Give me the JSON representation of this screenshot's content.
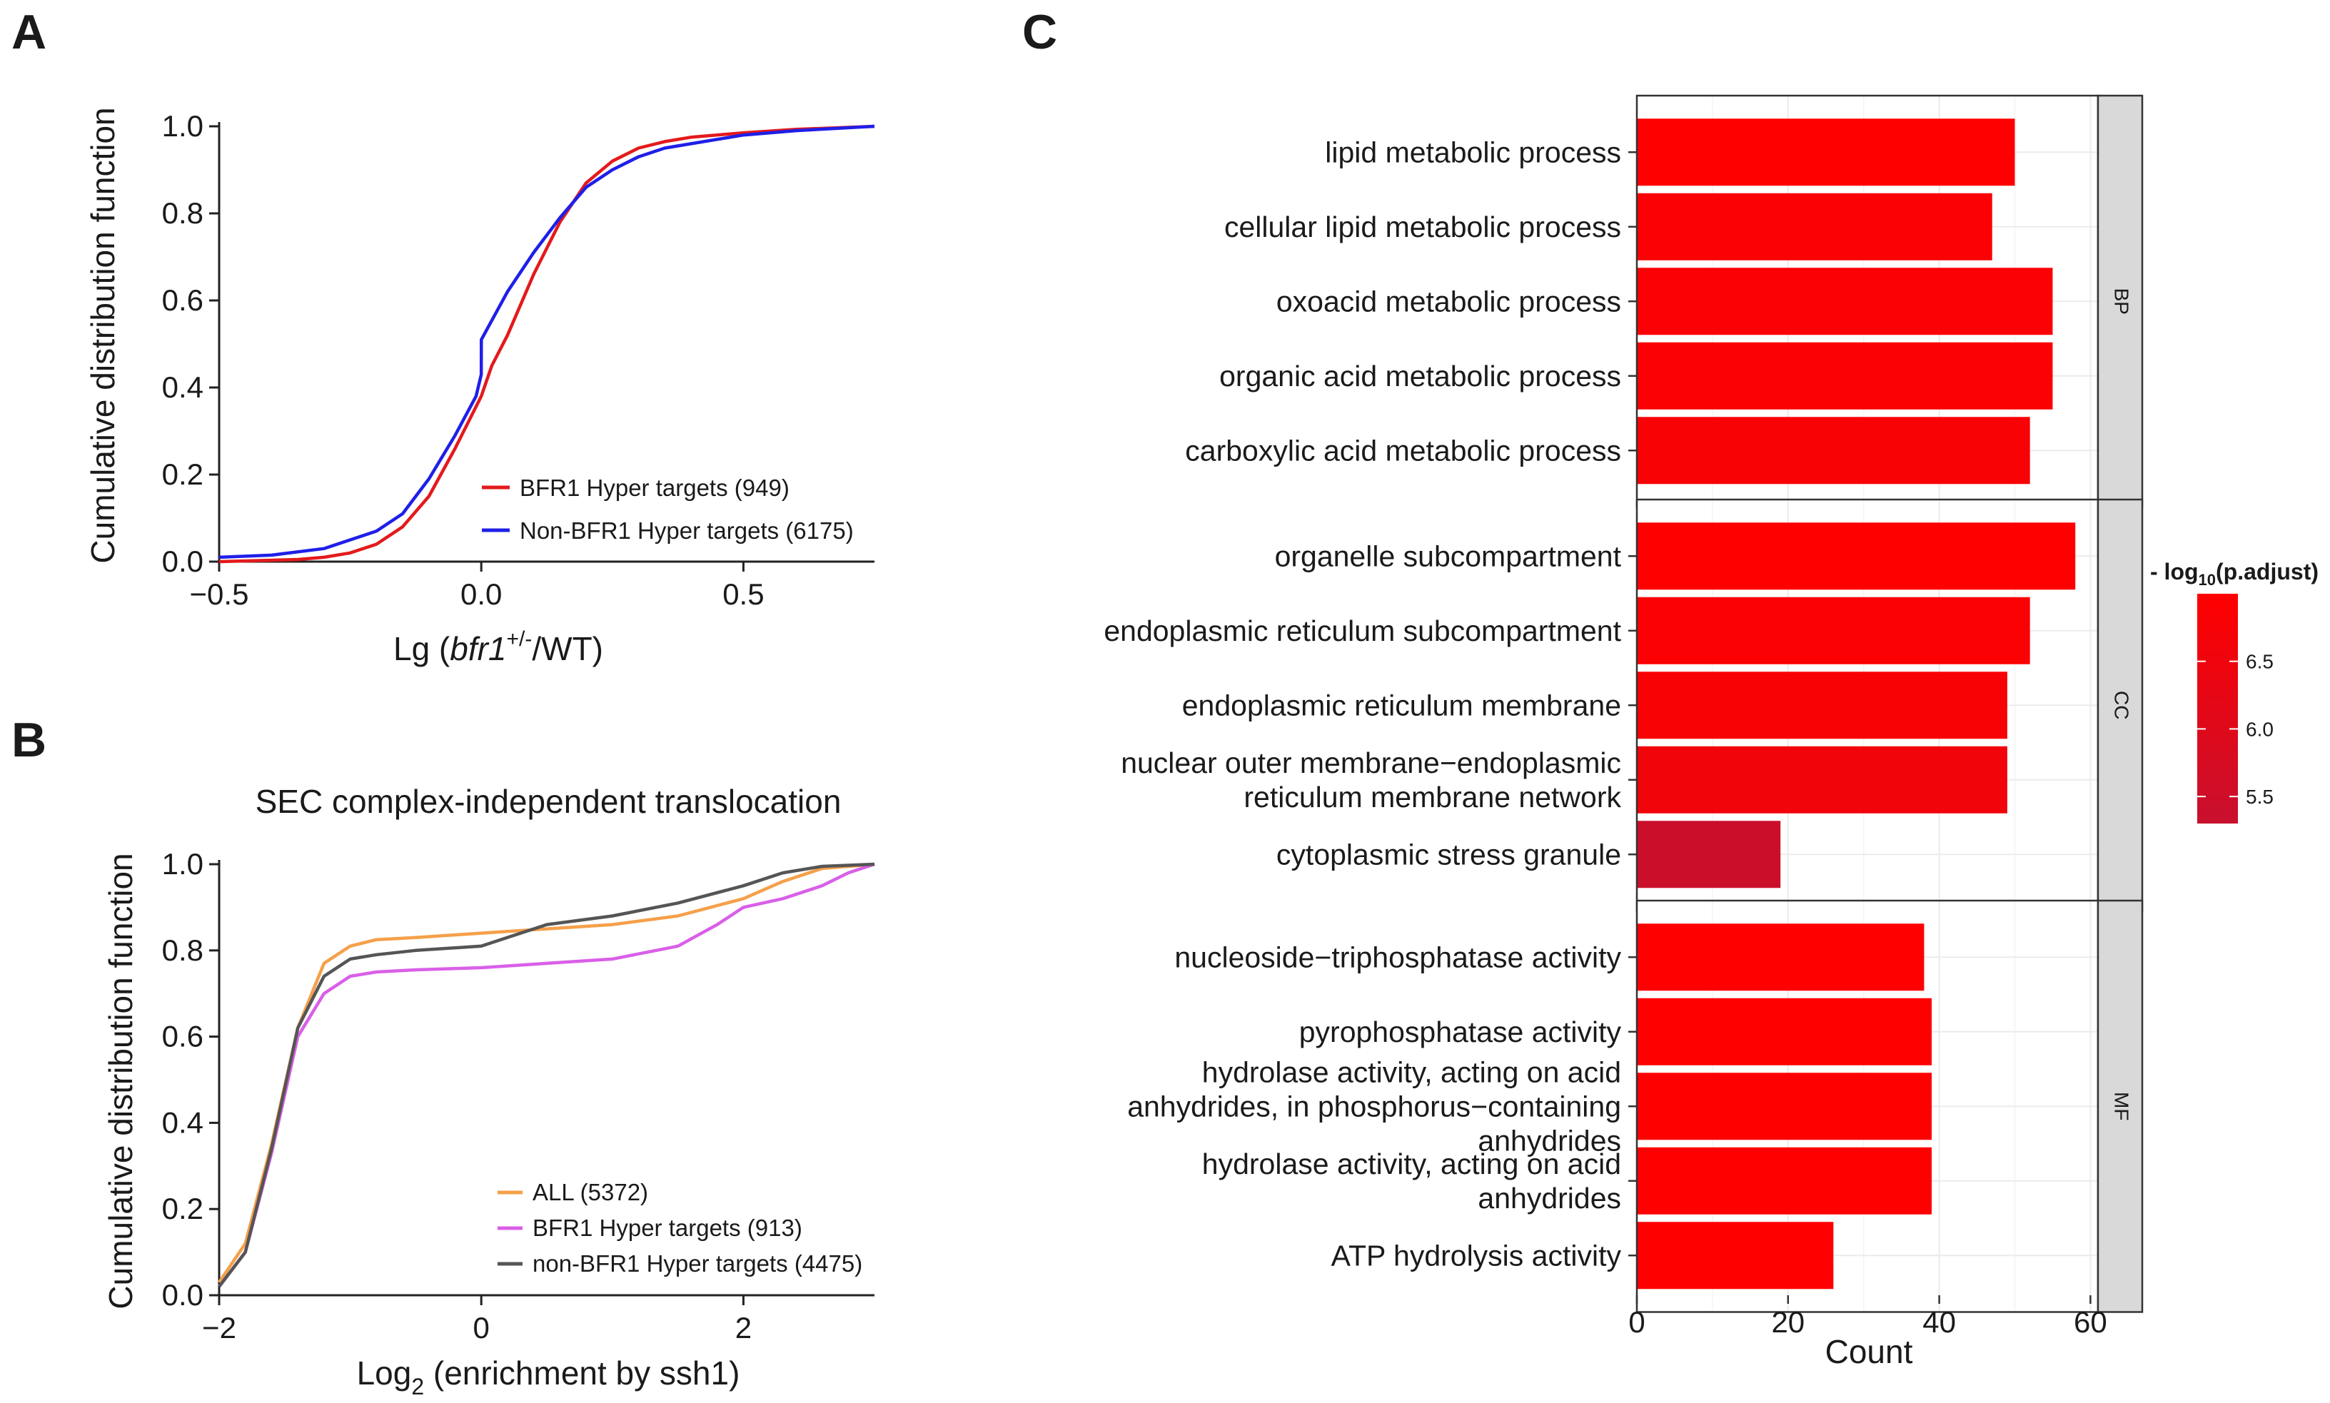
{
  "chart_data": [
    {
      "panel": "A",
      "type": "line",
      "title": "",
      "xlabel_prefix": "Lg (",
      "xlabel_italic": "bfr1",
      "xlabel_sup": "+/-",
      "xlabel_suffix": "/WT)",
      "ylabel": "Cumulative distribution function",
      "xlim": [
        -0.5,
        0.75
      ],
      "ylim": [
        0,
        1
      ],
      "xticks": [
        -0.5,
        0.0,
        0.5
      ],
      "xtick_labels": [
        "−0.5",
        "0.0",
        "0.5"
      ],
      "yticks": [
        0,
        0.2,
        0.4,
        0.6,
        0.8,
        1.0
      ],
      "ytick_labels": [
        "0.0",
        "0.2",
        "0.4",
        "0.6",
        "0.8",
        "1.0"
      ],
      "legend_position": "bottom-right",
      "series": [
        {
          "name": "BFR1 Hyper targets (949)",
          "color": "#e31a1c",
          "x": [
            -0.5,
            -0.35,
            -0.3,
            -0.25,
            -0.2,
            -0.15,
            -0.1,
            -0.05,
            0,
            0.02,
            0.05,
            0.1,
            0.15,
            0.2,
            0.25,
            0.3,
            0.35,
            0.4,
            0.5,
            0.6,
            0.75
          ],
          "y": [
            0.0,
            0.005,
            0.01,
            0.02,
            0.04,
            0.08,
            0.15,
            0.26,
            0.38,
            0.45,
            0.52,
            0.66,
            0.78,
            0.87,
            0.92,
            0.95,
            0.965,
            0.975,
            0.985,
            0.993,
            1.0
          ]
        },
        {
          "name": "Non-BFR1 Hyper targets (6175)",
          "color": "#1f1fe8",
          "x": [
            -0.5,
            -0.4,
            -0.3,
            -0.25,
            -0.2,
            -0.15,
            -0.1,
            -0.05,
            -0.01,
            0,
            0.0001,
            0.05,
            0.1,
            0.15,
            0.2,
            0.25,
            0.3,
            0.35,
            0.4,
            0.5,
            0.6,
            0.75
          ],
          "y": [
            0.01,
            0.015,
            0.03,
            0.05,
            0.07,
            0.11,
            0.19,
            0.29,
            0.38,
            0.43,
            0.51,
            0.62,
            0.71,
            0.79,
            0.86,
            0.9,
            0.93,
            0.95,
            0.96,
            0.98,
            0.99,
            1.0
          ]
        }
      ]
    },
    {
      "panel": "B",
      "type": "line",
      "title": "SEC complex-independent translocation",
      "xlabel_prefix": "Log",
      "xlabel_sub": "2",
      "xlabel_suffix": " (enrichment by ssh1)",
      "ylabel": "Cumulative distribution function",
      "xlim": [
        -2,
        3
      ],
      "ylim": [
        0,
        1
      ],
      "xticks": [
        -2,
        0,
        2
      ],
      "xtick_labels": [
        "−2",
        "0",
        "2"
      ],
      "yticks": [
        0,
        0.2,
        0.4,
        0.6,
        0.8,
        1.0
      ],
      "ytick_labels": [
        "0.0",
        "0.2",
        "0.4",
        "0.6",
        "0.8",
        "1.0"
      ],
      "legend_position": "bottom-right",
      "series": [
        {
          "name": "ALL (5372)",
          "color": "#f5a04a",
          "x": [
            -2,
            -1.8,
            -1.6,
            -1.4,
            -1.2,
            -1.0,
            -0.8,
            -0.5,
            0,
            0.5,
            1.0,
            1.5,
            2.0,
            2.3,
            2.6,
            3.0
          ],
          "y": [
            0.03,
            0.12,
            0.35,
            0.62,
            0.77,
            0.81,
            0.825,
            0.83,
            0.84,
            0.85,
            0.86,
            0.88,
            0.92,
            0.96,
            0.99,
            1.0
          ]
        },
        {
          "name": "BFR1 Hyper targets (913)",
          "color": "#d95fe8",
          "x": [
            -2,
            -1.8,
            -1.6,
            -1.4,
            -1.2,
            -1.0,
            -0.8,
            -0.5,
            0,
            0.5,
            1.0,
            1.5,
            1.8,
            2.0,
            2.3,
            2.6,
            2.8,
            3.0
          ],
          "y": [
            0.02,
            0.1,
            0.33,
            0.6,
            0.7,
            0.74,
            0.75,
            0.755,
            0.76,
            0.77,
            0.78,
            0.81,
            0.86,
            0.9,
            0.92,
            0.95,
            0.98,
            1.0
          ]
        },
        {
          "name": "non-BFR1 Hyper targets (4475)",
          "color": "#555555",
          "x": [
            -2,
            -1.8,
            -1.6,
            -1.4,
            -1.2,
            -1.0,
            -0.8,
            -0.5,
            0,
            0.3,
            0.5,
            1.0,
            1.5,
            2.0,
            2.3,
            2.6,
            3.0
          ],
          "y": [
            0.02,
            0.1,
            0.34,
            0.62,
            0.74,
            0.78,
            0.79,
            0.8,
            0.81,
            0.84,
            0.86,
            0.88,
            0.91,
            0.95,
            0.98,
            0.995,
            1.0
          ]
        }
      ]
    },
    {
      "panel": "C",
      "type": "bar",
      "orientation": "horizontal",
      "xlabel": "Count",
      "xlim": [
        0,
        61
      ],
      "xticks": [
        0,
        20,
        40,
        60
      ],
      "xtick_labels": [
        "0",
        "20",
        "40",
        "60"
      ],
      "colorbar_title_prefix": "- log",
      "colorbar_title_sub": "10",
      "colorbar_title_suffix": "(p.adjust)",
      "colorbar_range": [
        5.3,
        7.0
      ],
      "colorbar_ticks": [
        5.5,
        6.0,
        6.5
      ],
      "colorbar_tick_labels": [
        "5.5",
        "6.0",
        "6.5"
      ],
      "color_low": "#c8102e",
      "color_high": "#ff0000",
      "facets": [
        {
          "label": "BP",
          "terms": [
            {
              "lines": [
                "lipid metabolic process"
              ],
              "count": 50,
              "neg_log10_padj": 7.0
            },
            {
              "lines": [
                "cellular lipid metabolic process"
              ],
              "count": 47,
              "neg_log10_padj": 6.9
            },
            {
              "lines": [
                "oxoacid metabolic process"
              ],
              "count": 55,
              "neg_log10_padj": 6.9
            },
            {
              "lines": [
                "organic acid metabolic process"
              ],
              "count": 55,
              "neg_log10_padj": 6.9
            },
            {
              "lines": [
                "carboxylic acid metabolic process"
              ],
              "count": 52,
              "neg_log10_padj": 6.8
            }
          ]
        },
        {
          "label": "CC",
          "terms": [
            {
              "lines": [
                "organelle subcompartment"
              ],
              "count": 58,
              "neg_log10_padj": 7.0
            },
            {
              "lines": [
                "endoplasmic reticulum subcompartment"
              ],
              "count": 52,
              "neg_log10_padj": 6.9
            },
            {
              "lines": [
                "endoplasmic reticulum membrane"
              ],
              "count": 49,
              "neg_log10_padj": 6.8
            },
            {
              "lines": [
                "nuclear outer membrane−endoplasmic",
                "reticulum membrane network"
              ],
              "count": 49,
              "neg_log10_padj": 6.6
            },
            {
              "lines": [
                "cytoplasmic stress granule"
              ],
              "count": 19,
              "neg_log10_padj": 5.4
            }
          ]
        },
        {
          "label": "MF",
          "terms": [
            {
              "lines": [
                "nucleoside−triphosphatase activity"
              ],
              "count": 38,
              "neg_log10_padj": 7.0
            },
            {
              "lines": [
                "pyrophosphatase activity"
              ],
              "count": 39,
              "neg_log10_padj": 7.0
            },
            {
              "lines": [
                "hydrolase activity, acting on acid",
                "anhydrides, in phosphorus−containing",
                "anhydrides"
              ],
              "count": 39,
              "neg_log10_padj": 7.0
            },
            {
              "lines": [
                "hydrolase activity, acting on acid",
                "anhydrides"
              ],
              "count": 39,
              "neg_log10_padj": 7.0
            },
            {
              "lines": [
                "ATP hydrolysis activity"
              ],
              "count": 26,
              "neg_log10_padj": 7.0
            }
          ]
        }
      ]
    }
  ]
}
